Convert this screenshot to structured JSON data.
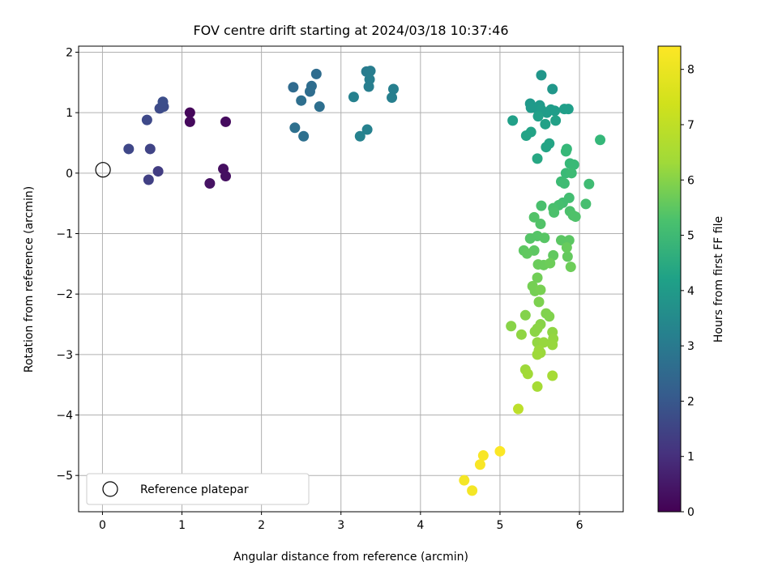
{
  "chart_data": {
    "type": "scatter",
    "title": "FOV centre drift starting at 2024/03/18 10:37:46",
    "xlabel": "Angular distance from reference (arcmin)",
    "ylabel": "Rotation from reference (arcmin)",
    "xlim": [
      -0.3,
      6.55
    ],
    "ylim": [
      -5.6,
      2.1
    ],
    "xticks": [
      0,
      1,
      2,
      3,
      4,
      5,
      6
    ],
    "yticks": [
      -5,
      -4,
      -3,
      -2,
      -1,
      0,
      1,
      2
    ],
    "grid": true,
    "colormap": "viridis",
    "colorbar": {
      "label": "Hours from first FF file",
      "range": [
        0,
        8.42
      ],
      "ticks": [
        0,
        1,
        2,
        3,
        4,
        5,
        6,
        7,
        8
      ]
    },
    "legend": {
      "position": "lower-left",
      "entries": [
        {
          "label": "Reference platepar",
          "marker": "open-circle"
        }
      ]
    },
    "reference_point": {
      "x": 0,
      "y": 0
    },
    "points": [
      {
        "x": 1.1,
        "y": 1.0,
        "h": 0.15
      },
      {
        "x": 1.1,
        "y": 0.85,
        "h": 0.2
      },
      {
        "x": 1.55,
        "y": 0.85,
        "h": 0.25
      },
      {
        "x": 1.52,
        "y": 0.07,
        "h": 0.3
      },
      {
        "x": 1.55,
        "y": -0.05,
        "h": 0.35
      },
      {
        "x": 1.35,
        "y": -0.17,
        "h": 0.4
      },
      {
        "x": 0.7,
        "y": 0.03,
        "h": 1.5
      },
      {
        "x": 0.58,
        "y": -0.11,
        "h": 1.6
      },
      {
        "x": 0.6,
        "y": 0.4,
        "h": 1.7
      },
      {
        "x": 0.33,
        "y": 0.4,
        "h": 1.8
      },
      {
        "x": 0.56,
        "y": 0.88,
        "h": 1.85
      },
      {
        "x": 0.72,
        "y": 1.07,
        "h": 1.9
      },
      {
        "x": 0.77,
        "y": 1.1,
        "h": 1.95
      },
      {
        "x": 0.76,
        "y": 1.18,
        "h": 2.0
      },
      {
        "x": 2.4,
        "y": 1.42,
        "h": 2.9
      },
      {
        "x": 2.69,
        "y": 1.64,
        "h": 2.95
      },
      {
        "x": 2.63,
        "y": 1.44,
        "h": 3.0
      },
      {
        "x": 2.61,
        "y": 1.35,
        "h": 3.0
      },
      {
        "x": 2.5,
        "y": 1.2,
        "h": 3.05
      },
      {
        "x": 2.73,
        "y": 1.1,
        "h": 3.05
      },
      {
        "x": 2.42,
        "y": 0.75,
        "h": 3.1
      },
      {
        "x": 2.53,
        "y": 0.61,
        "h": 3.1
      },
      {
        "x": 3.32,
        "y": 1.68,
        "h": 3.5
      },
      {
        "x": 3.37,
        "y": 1.69,
        "h": 3.55
      },
      {
        "x": 3.36,
        "y": 1.55,
        "h": 3.6
      },
      {
        "x": 3.35,
        "y": 1.43,
        "h": 3.6
      },
      {
        "x": 3.66,
        "y": 1.39,
        "h": 3.65
      },
      {
        "x": 3.64,
        "y": 1.25,
        "h": 3.65
      },
      {
        "x": 3.16,
        "y": 1.26,
        "h": 3.7
      },
      {
        "x": 3.33,
        "y": 0.72,
        "h": 3.7
      },
      {
        "x": 3.24,
        "y": 0.61,
        "h": 3.75
      },
      {
        "x": 5.52,
        "y": 1.62,
        "h": 4.4
      },
      {
        "x": 5.66,
        "y": 1.39,
        "h": 4.45
      },
      {
        "x": 5.38,
        "y": 1.15,
        "h": 4.5
      },
      {
        "x": 5.45,
        "y": 1.08,
        "h": 4.5
      },
      {
        "x": 5.39,
        "y": 1.08,
        "h": 4.55
      },
      {
        "x": 5.5,
        "y": 1.12,
        "h": 4.55
      },
      {
        "x": 5.52,
        "y": 1.05,
        "h": 4.6
      },
      {
        "x": 5.59,
        "y": 1.0,
        "h": 4.6
      },
      {
        "x": 5.64,
        "y": 1.05,
        "h": 4.65
      },
      {
        "x": 5.69,
        "y": 1.03,
        "h": 4.65
      },
      {
        "x": 5.81,
        "y": 1.06,
        "h": 4.7
      },
      {
        "x": 5.86,
        "y": 1.06,
        "h": 4.7
      },
      {
        "x": 5.16,
        "y": 0.87,
        "h": 4.75
      },
      {
        "x": 5.48,
        "y": 0.94,
        "h": 4.75
      },
      {
        "x": 5.57,
        "y": 0.81,
        "h": 4.8
      },
      {
        "x": 5.7,
        "y": 0.87,
        "h": 4.8
      },
      {
        "x": 5.39,
        "y": 0.68,
        "h": 4.85
      },
      {
        "x": 5.33,
        "y": 0.62,
        "h": 4.85
      },
      {
        "x": 5.62,
        "y": 0.49,
        "h": 4.9
      },
      {
        "x": 5.58,
        "y": 0.43,
        "h": 4.9
      },
      {
        "x": 5.47,
        "y": 0.24,
        "h": 5.0
      },
      {
        "x": 6.26,
        "y": 0.55,
        "h": 5.6
      },
      {
        "x": 5.84,
        "y": 0.4,
        "h": 5.6
      },
      {
        "x": 5.83,
        "y": 0.36,
        "h": 5.65
      },
      {
        "x": 5.88,
        "y": 0.16,
        "h": 5.65
      },
      {
        "x": 5.93,
        "y": 0.14,
        "h": 5.7
      },
      {
        "x": 5.83,
        "y": 0.0,
        "h": 5.7
      },
      {
        "x": 5.9,
        "y": 0.0,
        "h": 5.75
      },
      {
        "x": 5.77,
        "y": -0.14,
        "h": 5.75
      },
      {
        "x": 5.81,
        "y": -0.17,
        "h": 5.8
      },
      {
        "x": 6.12,
        "y": -0.18,
        "h": 5.8
      },
      {
        "x": 5.87,
        "y": -0.41,
        "h": 5.85
      },
      {
        "x": 5.79,
        "y": -0.49,
        "h": 5.85
      },
      {
        "x": 5.74,
        "y": -0.53,
        "h": 5.9
      },
      {
        "x": 6.08,
        "y": -0.51,
        "h": 5.9
      },
      {
        "x": 5.52,
        "y": -0.54,
        "h": 5.95
      },
      {
        "x": 5.67,
        "y": -0.58,
        "h": 5.95
      },
      {
        "x": 5.68,
        "y": -0.65,
        "h": 6.0
      },
      {
        "x": 5.88,
        "y": -0.63,
        "h": 6.0
      },
      {
        "x": 5.92,
        "y": -0.7,
        "h": 6.05
      },
      {
        "x": 5.95,
        "y": -0.72,
        "h": 6.05
      },
      {
        "x": 5.43,
        "y": -0.73,
        "h": 6.1
      },
      {
        "x": 5.51,
        "y": -0.84,
        "h": 6.1
      },
      {
        "x": 5.38,
        "y": -1.08,
        "h": 6.15
      },
      {
        "x": 5.47,
        "y": -1.04,
        "h": 6.15
      },
      {
        "x": 5.56,
        "y": -1.07,
        "h": 6.2
      },
      {
        "x": 5.77,
        "y": -1.11,
        "h": 6.25
      },
      {
        "x": 5.87,
        "y": -1.11,
        "h": 6.25
      },
      {
        "x": 5.43,
        "y": -1.28,
        "h": 6.3
      },
      {
        "x": 5.3,
        "y": -1.28,
        "h": 6.3
      },
      {
        "x": 5.34,
        "y": -1.33,
        "h": 6.35
      },
      {
        "x": 5.67,
        "y": -1.36,
        "h": 6.35
      },
      {
        "x": 5.85,
        "y": -1.38,
        "h": 6.4
      },
      {
        "x": 5.84,
        "y": -1.23,
        "h": 6.45
      },
      {
        "x": 5.48,
        "y": -1.51,
        "h": 6.5
      },
      {
        "x": 5.55,
        "y": -1.52,
        "h": 6.5
      },
      {
        "x": 5.63,
        "y": -1.49,
        "h": 6.55
      },
      {
        "x": 5.89,
        "y": -1.55,
        "h": 6.55
      },
      {
        "x": 5.47,
        "y": -1.73,
        "h": 6.6
      },
      {
        "x": 5.41,
        "y": -1.87,
        "h": 6.65
      },
      {
        "x": 5.44,
        "y": -1.95,
        "h": 6.65
      },
      {
        "x": 5.51,
        "y": -1.93,
        "h": 6.7
      },
      {
        "x": 5.49,
        "y": -2.13,
        "h": 6.75
      },
      {
        "x": 5.58,
        "y": -2.32,
        "h": 6.8
      },
      {
        "x": 5.62,
        "y": -2.37,
        "h": 6.8
      },
      {
        "x": 5.32,
        "y": -2.35,
        "h": 6.85
      },
      {
        "x": 5.14,
        "y": -2.53,
        "h": 6.9
      },
      {
        "x": 5.51,
        "y": -2.5,
        "h": 6.9
      },
      {
        "x": 5.47,
        "y": -2.57,
        "h": 6.95
      },
      {
        "x": 5.44,
        "y": -2.62,
        "h": 6.95
      },
      {
        "x": 5.27,
        "y": -2.67,
        "h": 7.0
      },
      {
        "x": 5.66,
        "y": -2.63,
        "h": 7.0
      },
      {
        "x": 5.67,
        "y": -2.74,
        "h": 7.05
      },
      {
        "x": 5.47,
        "y": -2.8,
        "h": 7.05
      },
      {
        "x": 5.55,
        "y": -2.8,
        "h": 7.1
      },
      {
        "x": 5.66,
        "y": -2.84,
        "h": 7.1
      },
      {
        "x": 5.49,
        "y": -2.93,
        "h": 7.15
      },
      {
        "x": 5.51,
        "y": -2.97,
        "h": 7.15
      },
      {
        "x": 5.47,
        "y": -3.0,
        "h": 7.2
      },
      {
        "x": 5.32,
        "y": -3.25,
        "h": 7.2
      },
      {
        "x": 5.35,
        "y": -3.32,
        "h": 7.25
      },
      {
        "x": 5.66,
        "y": -3.35,
        "h": 7.3
      },
      {
        "x": 5.47,
        "y": -3.53,
        "h": 7.3
      },
      {
        "x": 5.23,
        "y": -3.9,
        "h": 7.6
      },
      {
        "x": 4.55,
        "y": -5.08,
        "h": 8.3
      },
      {
        "x": 4.65,
        "y": -5.25,
        "h": 8.3
      },
      {
        "x": 4.75,
        "y": -4.82,
        "h": 8.35
      },
      {
        "x": 4.79,
        "y": -4.67,
        "h": 8.35
      },
      {
        "x": 5.0,
        "y": -4.6,
        "h": 8.4
      }
    ]
  }
}
